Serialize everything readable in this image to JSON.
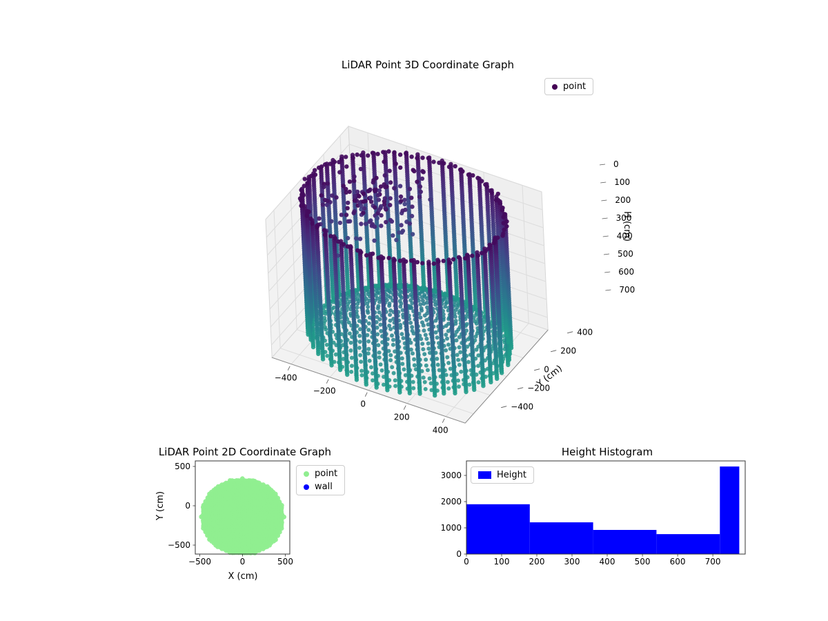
{
  "chart_data": [
    {
      "type": "scatter3d",
      "title": "LiDAR Point 3D Coordinate Graph",
      "ylabel": "Y (cm)",
      "zlabel": "H (cm)",
      "legend": [
        {
          "label": "point",
          "color": "#440154"
        }
      ],
      "x_ticks": [
        -400,
        -200,
        0,
        200,
        400
      ],
      "y_ticks": [
        400,
        200,
        0,
        -200,
        -400
      ],
      "h_ticks": [
        0,
        100,
        200,
        300,
        400,
        500,
        600,
        700
      ],
      "x_range": [
        -500,
        500
      ],
      "y_range": [
        -500,
        500
      ],
      "h_range": [
        0,
        770
      ],
      "h_axis_inverted": true,
      "colormap": "viridis",
      "point_cloud": {
        "shape": "cylinder-room-scan",
        "radius_cm": 480,
        "height_cm": 758,
        "wall_angle_step_deg": 6.5,
        "wall_h_step_cm": 12,
        "rim_angle_step_deg": 3.2,
        "floor": {
          "h_center": 565,
          "h_rim": 755,
          "ring_step_cm": 26
        },
        "noise": {
          "count": 150,
          "theta_deg": [
            95,
            235
          ],
          "r_cm": [
            80,
            430
          ],
          "h_cm": [
            0,
            260
          ]
        }
      }
    },
    {
      "type": "scatter",
      "title": "LiDAR Point 2D Coordinate Graph",
      "xlabel": "X (cm)",
      "ylabel": "Y (cm)",
      "legend": [
        {
          "label": "point",
          "color": "#90ee90"
        },
        {
          "label": "wall",
          "color": "#0000ff"
        }
      ],
      "x_ticks": [
        -500,
        0,
        500
      ],
      "y_ticks": [
        500,
        0,
        -500
      ],
      "xlim": [
        -552,
        552
      ],
      "ylim": [
        -614,
        570
      ],
      "blob": {
        "center": [
          0,
          -140
        ],
        "radius_cm": 480,
        "grid_step_cm": 24,
        "clip_y_min": -600,
        "color": "#90ee90"
      }
    },
    {
      "type": "bar",
      "title": "Height Histogram",
      "legend": [
        {
          "label": "Height",
          "color": "#0000ff"
        }
      ],
      "bar_color": "#0000ff",
      "bin_edges": [
        0,
        180,
        360,
        540,
        720,
        775
      ],
      "counts": [
        1900,
        1210,
        920,
        760,
        3340
      ],
      "x_ticks": [
        0,
        100,
        200,
        300,
        400,
        500,
        600,
        700
      ],
      "y_ticks": [
        0,
        1000,
        2000,
        3000
      ],
      "xlim": [
        0,
        792
      ],
      "ylim": [
        0,
        3553
      ]
    }
  ]
}
